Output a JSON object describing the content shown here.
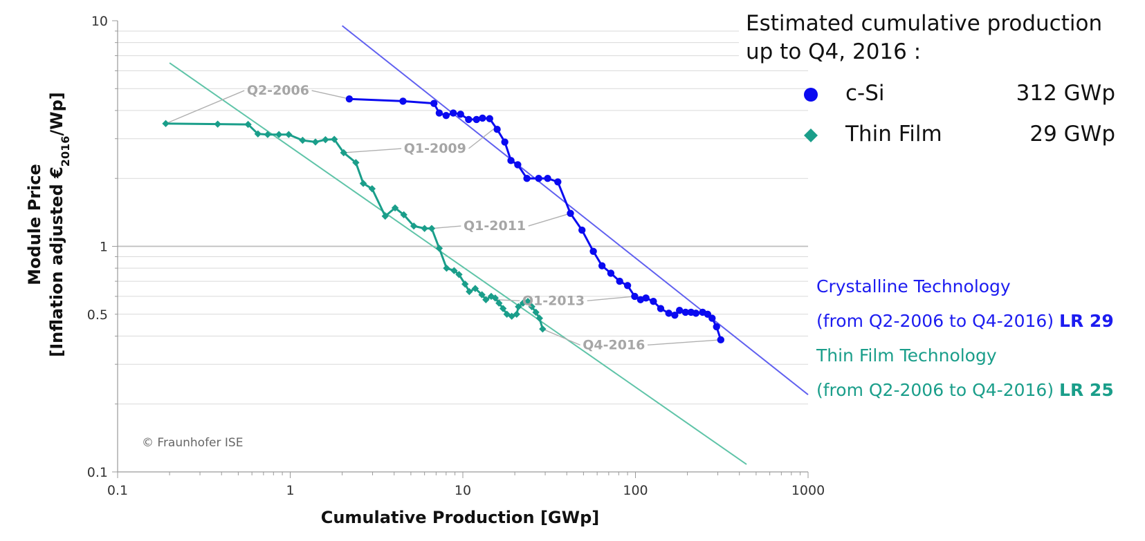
{
  "summary": {
    "line1": "Estimated cumulative production",
    "line2": "up to Q4, 2016 :"
  },
  "legend": [
    {
      "name": "c-Si",
      "value": "312 GWp",
      "color": "#0a0af0",
      "marker": "circle"
    },
    {
      "name": "Thin Film",
      "value": "29 GWp",
      "color": "#1a9e8a",
      "marker": "diamond"
    }
  ],
  "learning_rates": {
    "crystalline_label": "Crystalline Technology",
    "crystalline_range": "(from Q2-2006 to Q4-2016)",
    "crystalline_lr": "LR 29",
    "thinfilm_label": "Thin Film Technology",
    "thinfilm_range": "(from Q2-2006 to Q4-2016)",
    "thinfilm_lr": "LR 25"
  },
  "copyright": "© Fraunhofer ISE",
  "chart_data": {
    "type": "line",
    "x_scale": "log",
    "y_scale": "log",
    "xlabel": "Cumulative Production [GWp]",
    "ylabel_line1": "Module Price",
    "ylabel_line2_pre": "[Inflation adjusted €",
    "ylabel_sub": "2016",
    "ylabel_line2_post": "/Wp]",
    "xlim": [
      0.1,
      1000
    ],
    "ylim": [
      0.1,
      10
    ],
    "x_ticks": [
      0.1,
      1,
      10,
      100,
      1000
    ],
    "x_tick_labels": [
      "0.1",
      "1",
      "10",
      "100",
      "1000"
    ],
    "y_ticks": [
      0.1,
      0.5,
      1,
      10
    ],
    "y_tick_labels": [
      "0.1",
      "0.5",
      "1",
      "10"
    ],
    "grid": "horizontal",
    "series": [
      {
        "name": "c-Si",
        "color": "#0a0af0",
        "marker": "circle",
        "points": [
          [
            2.2,
            4.5
          ],
          [
            4.5,
            4.4
          ],
          [
            6.8,
            4.3
          ],
          [
            7.3,
            3.9
          ],
          [
            8.0,
            3.8
          ],
          [
            8.8,
            3.9
          ],
          [
            9.7,
            3.85
          ],
          [
            10.8,
            3.65
          ],
          [
            12.0,
            3.65
          ],
          [
            13.0,
            3.7
          ],
          [
            14.3,
            3.68
          ],
          [
            15.8,
            3.3
          ],
          [
            17.5,
            2.9
          ],
          [
            19.0,
            2.4
          ],
          [
            20.8,
            2.3
          ],
          [
            23.5,
            2.0
          ],
          [
            27.5,
            2.0
          ],
          [
            31.0,
            2.0
          ],
          [
            35.5,
            1.93
          ],
          [
            42.0,
            1.4
          ],
          [
            49.0,
            1.18
          ],
          [
            57.0,
            0.95
          ],
          [
            64.0,
            0.82
          ],
          [
            72.0,
            0.76
          ],
          [
            81.0,
            0.7
          ],
          [
            90.0,
            0.67
          ],
          [
            99.0,
            0.6
          ],
          [
            107.0,
            0.58
          ],
          [
            115.0,
            0.59
          ],
          [
            127.0,
            0.57
          ],
          [
            140.0,
            0.53
          ],
          [
            156.0,
            0.505
          ],
          [
            169.0,
            0.495
          ],
          [
            180.0,
            0.52
          ],
          [
            195.0,
            0.51
          ],
          [
            210.0,
            0.51
          ],
          [
            224.0,
            0.505
          ],
          [
            245.0,
            0.51
          ],
          [
            262.0,
            0.5
          ],
          [
            278.0,
            0.48
          ],
          [
            295.0,
            0.44
          ],
          [
            312.0,
            0.385
          ]
        ]
      },
      {
        "name": "Thin Film",
        "color": "#1a9e8a",
        "marker": "diamond",
        "points": [
          [
            0.19,
            3.5
          ],
          [
            0.38,
            3.48
          ],
          [
            0.57,
            3.47
          ],
          [
            0.65,
            3.15
          ],
          [
            0.74,
            3.13
          ],
          [
            0.86,
            3.13
          ],
          [
            0.98,
            3.13
          ],
          [
            1.18,
            2.95
          ],
          [
            1.4,
            2.9
          ],
          [
            1.6,
            2.97
          ],
          [
            1.8,
            2.98
          ],
          [
            2.04,
            2.6
          ],
          [
            2.4,
            2.35
          ],
          [
            2.65,
            1.9
          ],
          [
            2.98,
            1.8
          ],
          [
            3.55,
            1.36
          ],
          [
            4.05,
            1.48
          ],
          [
            4.55,
            1.38
          ],
          [
            5.2,
            1.23
          ],
          [
            6.0,
            1.2
          ],
          [
            6.6,
            1.2
          ],
          [
            7.3,
            0.98
          ],
          [
            8.05,
            0.8
          ],
          [
            8.9,
            0.78
          ],
          [
            9.5,
            0.75
          ],
          [
            10.3,
            0.68
          ],
          [
            10.9,
            0.63
          ],
          [
            11.8,
            0.65
          ],
          [
            12.9,
            0.61
          ],
          [
            13.6,
            0.58
          ],
          [
            14.6,
            0.6
          ],
          [
            15.4,
            0.59
          ],
          [
            16.2,
            0.56
          ],
          [
            17.1,
            0.53
          ],
          [
            18.0,
            0.5
          ],
          [
            19.2,
            0.49
          ],
          [
            20.5,
            0.5
          ],
          [
            21.0,
            0.54
          ],
          [
            22.3,
            0.56
          ],
          [
            23.8,
            0.57
          ],
          [
            25.1,
            0.54
          ],
          [
            26.5,
            0.51
          ],
          [
            27.8,
            0.48
          ],
          [
            29.0,
            0.43
          ]
        ]
      }
    ],
    "trend_lines": [
      {
        "name": "crystalline",
        "color": "#6060f0",
        "from": [
          2.0,
          9.5
        ],
        "to": [
          1000,
          0.22
        ]
      },
      {
        "name": "thinfilm",
        "color": "#5fc4a8",
        "from": [
          0.2,
          6.5
        ],
        "to": [
          440,
          0.108
        ]
      }
    ],
    "annotations": [
      {
        "text": "Q2-2006",
        "at": [
          0.85,
          4.7
        ],
        "targets": [
          [
            0.19,
            3.5
          ],
          [
            2.2,
            4.5
          ]
        ]
      },
      {
        "text": "Q1-2009",
        "at": [
          6.9,
          2.6
        ],
        "targets": [
          [
            2.04,
            2.6
          ],
          [
            15.0,
            3.3
          ]
        ]
      },
      {
        "text": "Q1-2011",
        "at": [
          15.3,
          1.18
        ],
        "targets": [
          [
            6.6,
            1.2
          ],
          [
            42.0,
            1.4
          ]
        ]
      },
      {
        "text": "Q1-2013",
        "at": [
          33.5,
          0.55
        ],
        "targets": [
          [
            15.5,
            0.58
          ],
          [
            99.0,
            0.6
          ]
        ]
      },
      {
        "text": "Q4-2016",
        "at": [
          75.0,
          0.35
        ],
        "targets": [
          [
            29.0,
            0.43
          ],
          [
            312.0,
            0.385
          ]
        ]
      }
    ]
  }
}
